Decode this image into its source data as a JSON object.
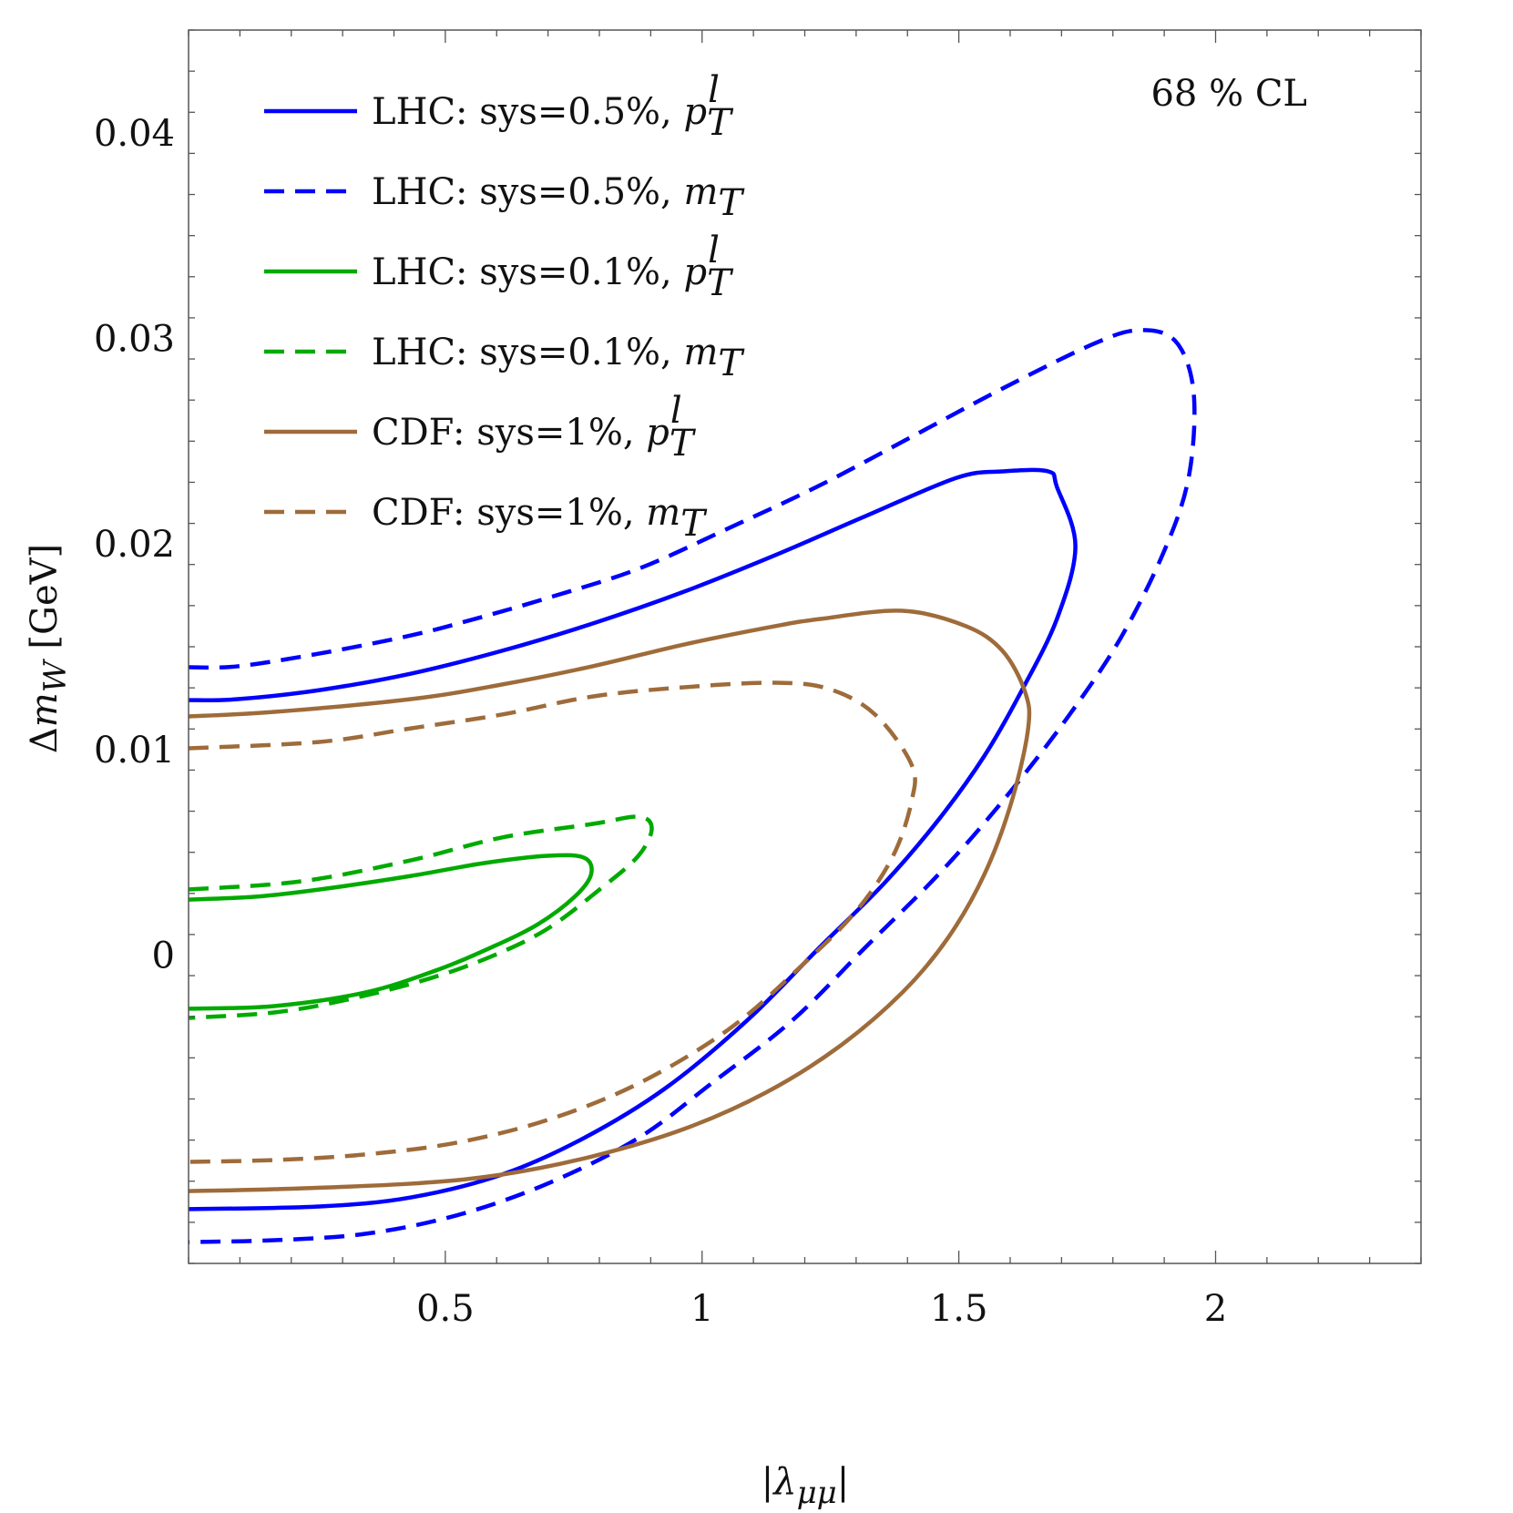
{
  "chart_data": {
    "type": "line",
    "subtype": "contour",
    "xlabel": "|λ_μμ|",
    "ylabel": "Δm_W [GeV]",
    "annotation": "68 % CL",
    "xlim": [
      0,
      2.4
    ],
    "ylim": [
      -0.015,
      0.045
    ],
    "x_ticks": [
      0.5,
      1,
      1.5,
      2
    ],
    "x_tick_labels": [
      "0.5",
      "1",
      "1.5",
      "2"
    ],
    "y_ticks": [
      0.04,
      0.03,
      0.02,
      0.01,
      0
    ],
    "y_tick_labels": [
      "0.04",
      "0.03",
      "0.02",
      "0.01",
      "0"
    ],
    "x_minor_step": 0.1,
    "y_minor_step": 0.002,
    "grid": false,
    "legend_placement": "top-left",
    "series": [
      {
        "name": "LHC: sys=0.5%, p_T^l",
        "legend": {
          "text": "LHC: sys=0.5%, ",
          "var": "p",
          "sub": "T",
          "sup": "l"
        },
        "color": "#0000ff",
        "dashed": false,
        "x": [
          0,
          0.096,
          0.255,
          0.433,
          0.61,
          0.787,
          0.965,
          1.142,
          1.319,
          1.496,
          1.585,
          1.674,
          1.691,
          1.727,
          1.691,
          1.621,
          1.55,
          1.461,
          1.355,
          1.23,
          1.089,
          0.929,
          0.77,
          0.61,
          0.433,
          0.255,
          0
        ],
        "y": [
          0.0124,
          0.01245,
          0.01289,
          0.01369,
          0.0148,
          0.01613,
          0.01768,
          0.01945,
          0.02136,
          0.02322,
          0.02353,
          0.02353,
          0.02277,
          0.0199,
          0.01635,
          0.0128,
          0.0097,
          0.0066,
          0.0035,
          0.0004,
          -0.00315,
          -0.00647,
          -0.0089,
          -0.01068,
          -0.01179,
          -0.01223,
          -0.01236
        ]
      },
      {
        "name": "LHC: sys=0.5%, m_T",
        "legend": {
          "text": "LHC: sys=0.5%, ",
          "var": "m",
          "sub": "T",
          "sup": ""
        },
        "color": "#0000ff",
        "dashed": true,
        "x": [
          0,
          0.096,
          0.255,
          0.433,
          0.557,
          0.699,
          0.876,
          1.053,
          1.23,
          1.408,
          1.585,
          1.762,
          1.851,
          1.922,
          1.957,
          1.949,
          1.904,
          1.816,
          1.709,
          1.585,
          1.461,
          1.319,
          1.177,
          1.018,
          0.876,
          0.699,
          0.521,
          0.344,
          0.167,
          0
        ],
        "y": [
          0.014,
          0.01405,
          0.01467,
          0.01555,
          0.01635,
          0.01737,
          0.01879,
          0.02078,
          0.02286,
          0.02521,
          0.02756,
          0.02973,
          0.0304,
          0.02986,
          0.02743,
          0.02344,
          0.0199,
          0.01546,
          0.01147,
          0.00748,
          0.00394,
          0.0004,
          -0.00315,
          -0.00625,
          -0.0089,
          -0.01112,
          -0.01267,
          -0.01356,
          -0.01387,
          -0.01396
        ]
      },
      {
        "name": "LHC: sys=0.1%, p_T^l",
        "legend": {
          "text": "LHC: sys=0.1%, ",
          "var": "p",
          "sub": "T",
          "sup": "l"
        },
        "color": "#00aa00",
        "dashed": false,
        "x": [
          0,
          0.131,
          0.255,
          0.433,
          0.574,
          0.699,
          0.77,
          0.784,
          0.752,
          0.681,
          0.592,
          0.486,
          0.344,
          0.167,
          0
        ],
        "y": [
          0.0027,
          0.00284,
          0.00319,
          0.00385,
          0.00447,
          0.00483,
          0.00474,
          0.00394,
          0.00284,
          0.00151,
          0.0004,
          -0.00071,
          -0.00182,
          -0.00248,
          -0.00261
        ]
      },
      {
        "name": "LHC: sys=0.1%, m_T",
        "legend": {
          "text": "LHC: sys=0.1%, ",
          "var": "m",
          "sub": "T",
          "sup": ""
        },
        "color": "#00aa00",
        "dashed": true,
        "x": [
          0,
          0.22,
          0.433,
          0.61,
          0.787,
          0.876,
          0.902,
          0.876,
          0.805,
          0.699,
          0.592,
          0.468,
          0.309,
          0.167,
          0
        ],
        "y": [
          0.00319,
          0.00359,
          0.00461,
          0.00572,
          0.00638,
          0.00673,
          0.00616,
          0.00483,
          0.00328,
          0.00128,
          -4e-05,
          -0.00115,
          -0.00217,
          -0.00279,
          -0.00306
        ]
      },
      {
        "name": "CDF: sys=1%, p_T^l",
        "legend": {
          "text": "CDF: sys=1%, ",
          "var": "p",
          "sub": "T",
          "sup": "l"
        },
        "color": "#9e6b3a",
        "dashed": false,
        "x": [
          0,
          0.167,
          0.433,
          0.61,
          0.787,
          0.965,
          1.142,
          1.23,
          1.39,
          1.514,
          1.585,
          1.629,
          1.635,
          1.603,
          1.55,
          1.479,
          1.39,
          1.266,
          1.124,
          0.965,
          0.787,
          0.61,
          0.433,
          0.167,
          0
        ],
        "y": [
          0.01161,
          0.01183,
          0.01245,
          0.01316,
          0.01405,
          0.01511,
          0.016,
          0.01635,
          0.01675,
          0.016,
          0.0148,
          0.0128,
          0.01103,
          0.00749,
          0.00394,
          0.00084,
          -0.00182,
          -0.00447,
          -0.00669,
          -0.00846,
          -0.00979,
          -0.01068,
          -0.01112,
          -0.01139,
          -0.01148
        ]
      },
      {
        "name": "CDF: sys=1%, m_T",
        "legend": {
          "text": "CDF: sys=1%, ",
          "var": "m",
          "sub": "T",
          "sup": ""
        },
        "color": "#9e6b3a",
        "dashed": true,
        "x": [
          0,
          0.255,
          0.433,
          0.61,
          0.787,
          0.965,
          1.142,
          1.248,
          1.337,
          1.408,
          1.408,
          1.372,
          1.301,
          1.195,
          1.053,
          0.876,
          0.699,
          0.521,
          0.344,
          0.167,
          0
        ],
        "y": [
          0.01006,
          0.01037,
          0.01103,
          0.0117,
          0.01258,
          0.01303,
          0.01325,
          0.01294,
          0.0117,
          0.00926,
          0.00749,
          0.00483,
          0.00217,
          -0.00049,
          -0.00359,
          -0.00625,
          -0.00802,
          -0.00913,
          -0.0097,
          -0.00997,
          -0.01006
        ]
      }
    ]
  }
}
